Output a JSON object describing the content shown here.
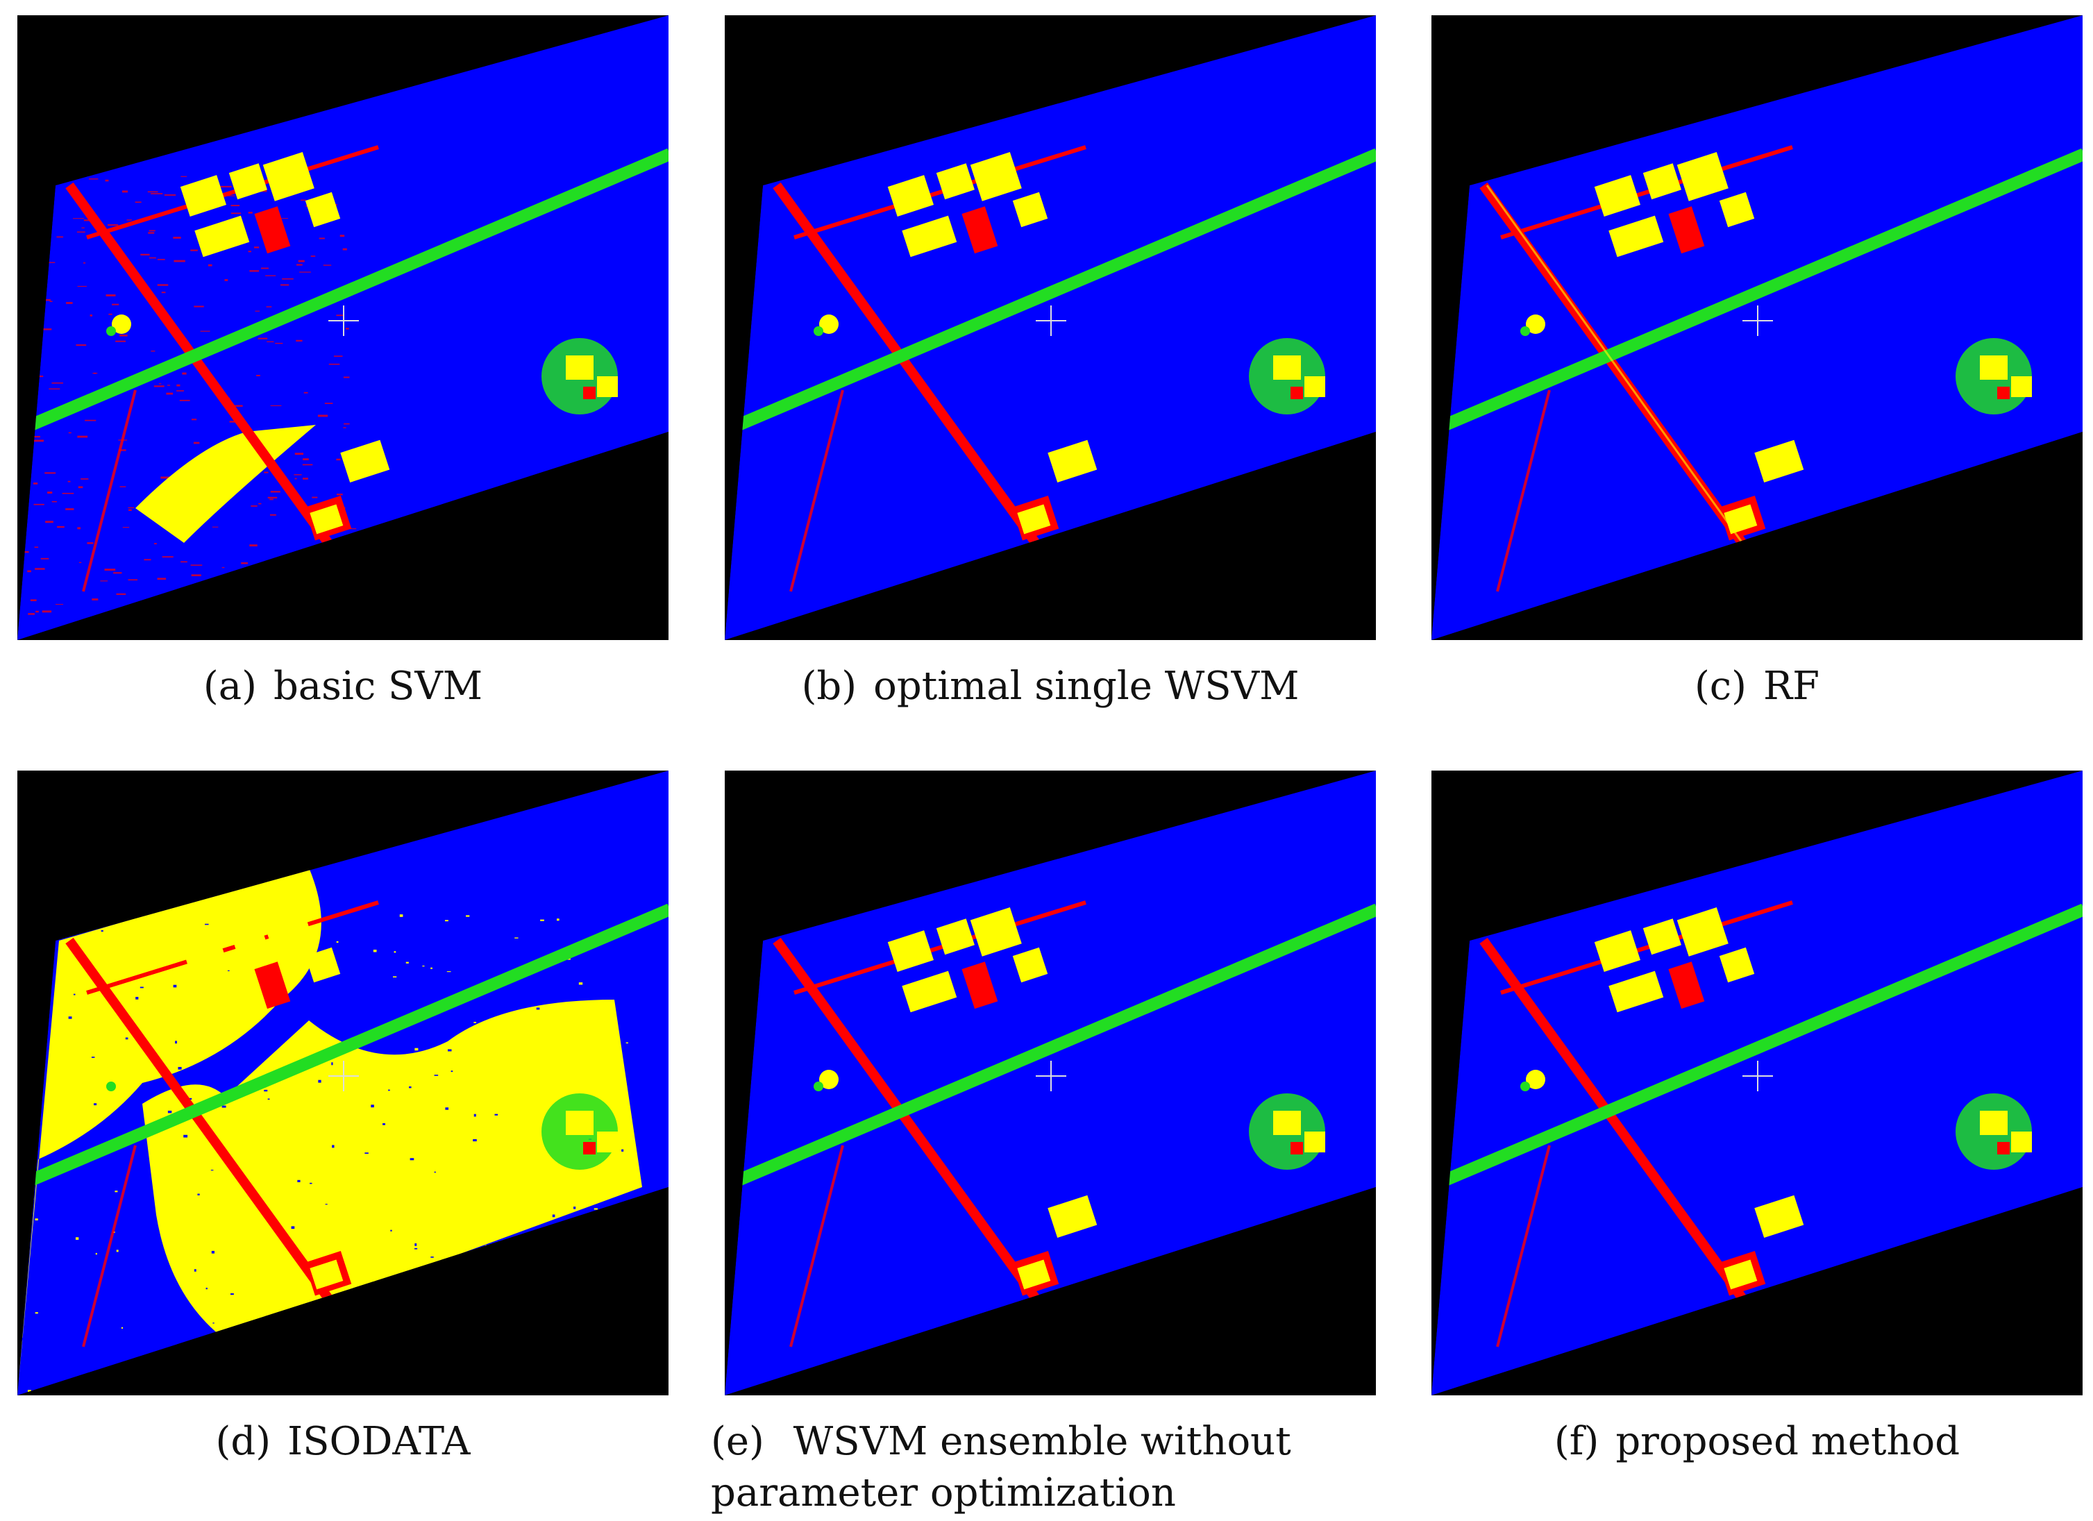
{
  "figure": {
    "panels": [
      {
        "label": "(a)",
        "caption": "basic SVM",
        "style": "noisy-red"
      },
      {
        "label": "(b)",
        "caption": "optimal single WSVM",
        "style": "clean"
      },
      {
        "label": "(c)",
        "caption": "RF",
        "style": "clean-rf"
      },
      {
        "label": "(d)",
        "caption": "ISODATA",
        "style": "yellow-heavy"
      },
      {
        "label": "(e)",
        "caption_line1": "WSVM ensemble without",
        "caption_line2": "parameter optimization",
        "style": "clean"
      },
      {
        "label": "(f)",
        "caption": "proposed method",
        "style": "clean"
      }
    ],
    "class_colors": {
      "background": "#000000",
      "water_field": "#0000FF",
      "road": "#FF0000",
      "building": "#FFFF00",
      "vegetation": "#22DD22"
    },
    "cursor_icon": "crosshair-icon"
  }
}
